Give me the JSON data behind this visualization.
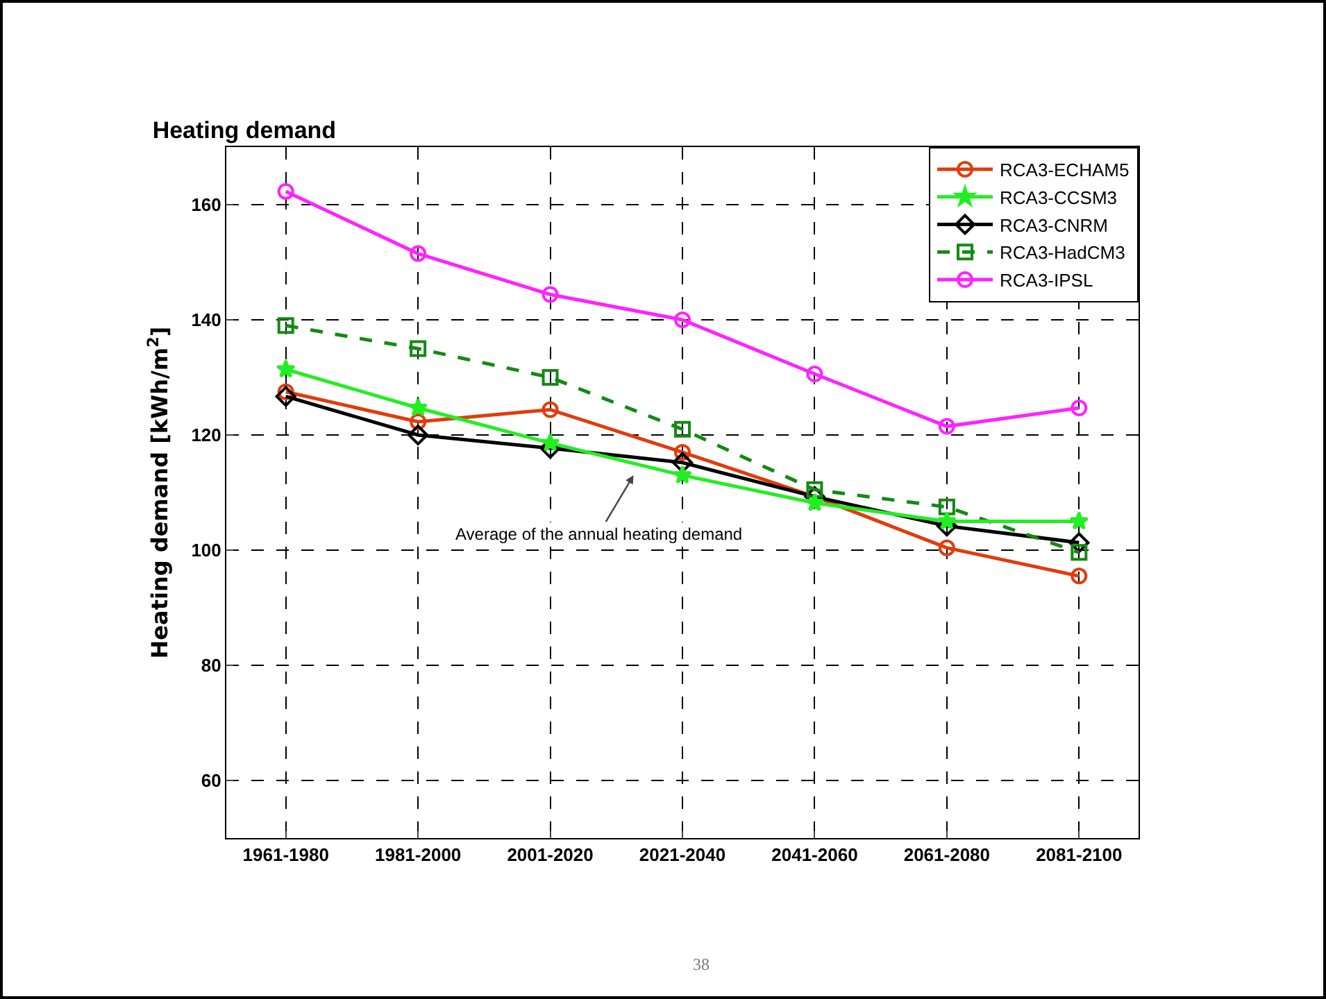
{
  "chart_data": {
    "type": "line",
    "title": "Heating demand",
    "ylabel": "Heating demand [kWh/m$^{2}$]",
    "categories": [
      "1961-1980",
      "1981-2000",
      "2001-2020",
      "2021-2040",
      "2041-2060",
      "2061-2080",
      "2081-2100"
    ],
    "series": [
      {
        "name": "RCA3-ECHAM5",
        "color": "#e03c0c",
        "marker": "circle",
        "values": [
          127.5,
          122.3,
          124.4,
          117,
          109.3,
          100.4,
          95.5
        ]
      },
      {
        "name": "RCA3-CCSM3",
        "color": "#22ee22",
        "marker": "star",
        "values": [
          131.4,
          124.7,
          118.6,
          113,
          108.2,
          105,
          105
        ]
      },
      {
        "name": "RCA3-CNRM",
        "color": "#000000",
        "marker": "diamond",
        "values": [
          126.7,
          120,
          117.7,
          115.2,
          109.3,
          104.2,
          101.3
        ]
      },
      {
        "name": "RCA3-HadCM3",
        "color": "#138a13",
        "marker": "square",
        "line_style": "dashed",
        "values": [
          139,
          135,
          130,
          121,
          110.5,
          107.5,
          99.6
        ]
      },
      {
        "name": "RCA3-IPSL",
        "color": "#ff22ff",
        "marker": "circle",
        "values": [
          162.3,
          151.5,
          144.4,
          140,
          130.6,
          121.5,
          124.7
        ]
      }
    ],
    "ylim": [
      50,
      170
    ],
    "yticks": [
      60,
      80,
      100,
      120,
      140,
      160
    ],
    "grid": true,
    "legend": "top right",
    "annotations": [
      "Average of the annual heating demand",
      "38"
    ]
  }
}
